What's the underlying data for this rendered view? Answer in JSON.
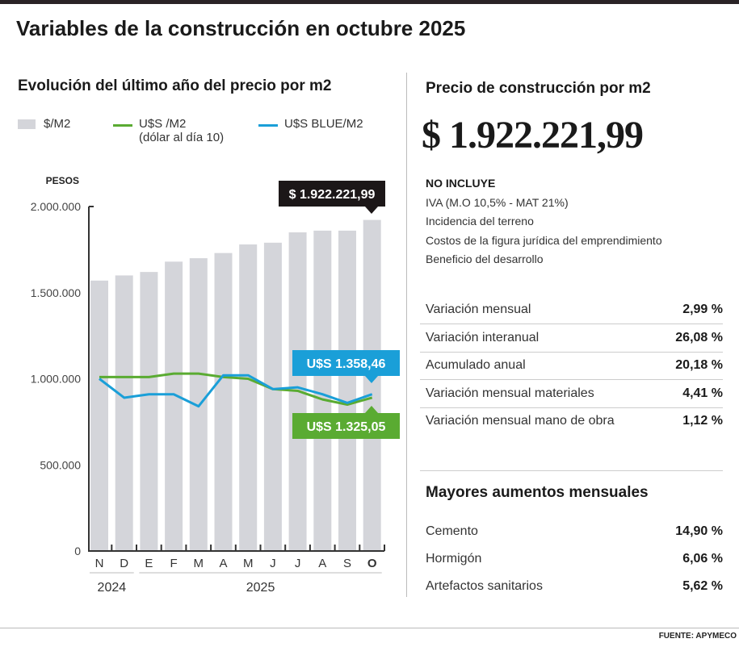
{
  "title": "Variables de la construcción en octubre 2025",
  "left": {
    "subtitle": "Evolución del último año del precio por m2",
    "legend": [
      {
        "label": "$/M2",
        "color": "#d4d5da"
      },
      {
        "label": "U$S /M2",
        "sublabel": "(dólar al día 10)",
        "color": "#5aab32"
      },
      {
        "label": "U$S BLUE/M2",
        "color": "#1a9fd8"
      }
    ]
  },
  "chart_data": {
    "type": "bar",
    "ylabel": "PESOS",
    "ylim": [
      0,
      2000000
    ],
    "yticks": [
      0,
      500000,
      1000000,
      1500000,
      2000000
    ],
    "ytick_labels": [
      "0",
      "500.000",
      "1.000.000",
      "1.500.000",
      "2.000.000"
    ],
    "categories": [
      "N",
      "D",
      "E",
      "F",
      "M",
      "A",
      "M",
      "J",
      "J",
      "A",
      "S",
      "O"
    ],
    "year_groups": [
      {
        "label": "2024",
        "from": 0,
        "to": 1
      },
      {
        "label": "2025",
        "from": 2,
        "to": 11
      }
    ],
    "series": [
      {
        "name": "$/M2",
        "type": "bar",
        "color": "#d4d5da",
        "values": [
          1570000,
          1600000,
          1620000,
          1680000,
          1700000,
          1730000,
          1780000,
          1790000,
          1850000,
          1860000,
          1860000,
          1922221.99
        ]
      },
      {
        "name": "U$S /M2",
        "type": "line",
        "color": "#5aab32",
        "values": [
          1010000,
          1010000,
          1010000,
          1030000,
          1030000,
          1010000,
          1000000,
          940000,
          930000,
          880000,
          850000,
          890000
        ]
      },
      {
        "name": "U$S BLUE/M2",
        "type": "line",
        "color": "#1a9fd8",
        "values": [
          1000000,
          890000,
          910000,
          910000,
          840000,
          1020000,
          1020000,
          940000,
          950000,
          910000,
          860000,
          910000
        ]
      }
    ],
    "annotations": [
      {
        "text": "$ 1.922.221,99",
        "series": "$/M2",
        "index": 11,
        "color": "#1c1718"
      },
      {
        "text": "U$S 1.358,46",
        "series": "U$S BLUE/M2",
        "index": 11,
        "color": "#1a9fd8"
      },
      {
        "text": "U$S 1.325,05",
        "series": "U$S /M2",
        "index": 11,
        "color": "#5aab32"
      }
    ]
  },
  "right": {
    "subtitle": "Precio de construcción por m2",
    "price": "$ 1.922.221,99",
    "excludes_title": "NO INCLUYE",
    "excludes": [
      "IVA (M.O 10,5% - MAT 21%)",
      "Incidencia del terreno",
      "Costos de la figura jurídica del emprendimiento",
      "Beneficio del desarrollo"
    ],
    "variations": [
      {
        "label": "Variación mensual",
        "value": "2,99 %"
      },
      {
        "label": "Variación interanual",
        "value": "26,08 %"
      },
      {
        "label": "Acumulado anual",
        "value": "20,18 %"
      },
      {
        "label": "Variación mensual materiales",
        "value": "4,41 %"
      },
      {
        "label": "Variación mensual mano de obra",
        "value": "1,12 %"
      }
    ],
    "increases_title": "Mayores aumentos mensuales",
    "increases": [
      {
        "label": "Cemento",
        "value": "14,90 %"
      },
      {
        "label": "Hormigón",
        "value": "6,06 %"
      },
      {
        "label": "Artefactos sanitarios",
        "value": "5,62 %"
      }
    ]
  },
  "source": "FUENTE: APYMECO"
}
